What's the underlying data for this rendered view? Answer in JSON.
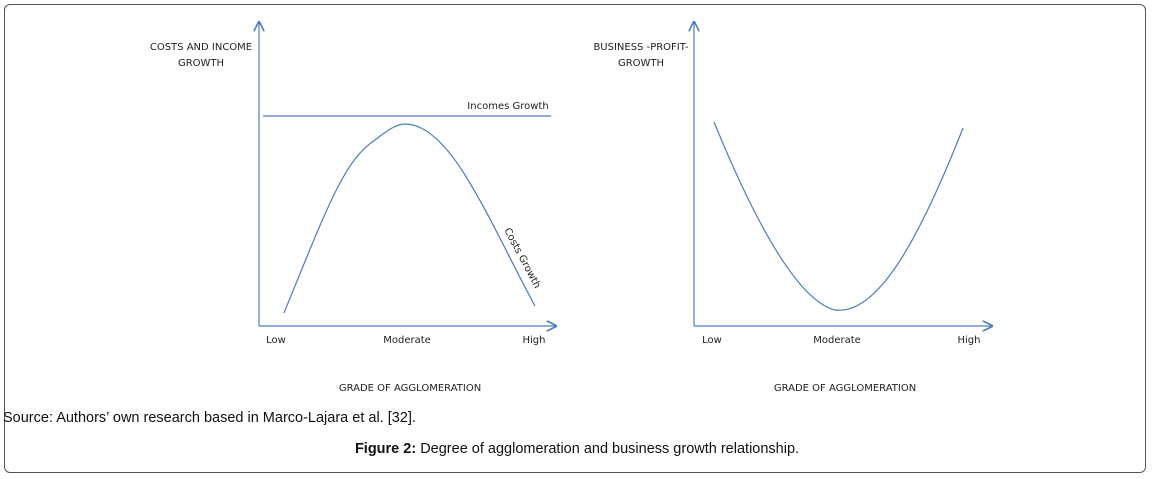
{
  "left_chart": {
    "ylabel_line1": "COSTS AND INCOME",
    "ylabel_line2": "GROWTH",
    "xlabel": "GRADE OF AGGLOMERATION",
    "ticks": [
      "Low",
      "Moderate",
      "High"
    ],
    "income_label": "Incomes Growth",
    "costs_label": "Costs Growth"
  },
  "right_chart": {
    "ylabel_line1": "BUSINESS -PROFIT-",
    "ylabel_line2": "GROWTH",
    "xlabel": "GRADE OF AGGLOMERATION",
    "ticks": [
      "Low",
      "Moderate",
      "High"
    ]
  },
  "source": "Source: Authors’ own research based in Marco-Lajara et al. [32].",
  "caption": {
    "label": "Figure 2:",
    "text": " Degree of agglomeration and business growth relationship."
  },
  "colors": {
    "line": "#4a7ebb"
  }
}
